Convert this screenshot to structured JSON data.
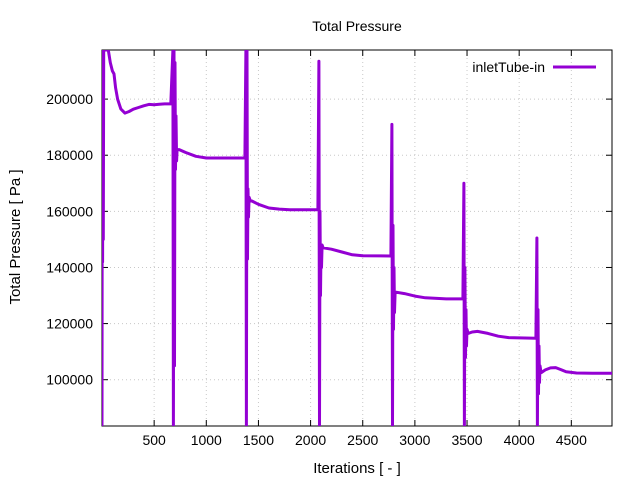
{
  "chart_data": {
    "type": "line",
    "title": "Total Pressure",
    "xlabel": "Iterations [ - ]",
    "ylabel": "Total Pressure [ Pa ]",
    "xlim": [
      0,
      4890
    ],
    "ylim": [
      83500,
      217500
    ],
    "xticks": [
      500,
      1000,
      1500,
      2000,
      2500,
      3000,
      3500,
      4000,
      4500
    ],
    "yticks": [
      100000,
      120000,
      140000,
      160000,
      180000,
      200000
    ],
    "xtick_labels": [
      "500",
      "1000",
      "1500",
      "2000",
      "2500",
      "3000",
      "3500",
      "4000",
      "4500"
    ],
    "ytick_labels": [
      "100000",
      "120000",
      "140000",
      "160000",
      "180000",
      "200000"
    ],
    "grid": true,
    "legend_position": "top-right",
    "series_color": "#9400d3",
    "series": [
      {
        "name": "inletTube-in",
        "points": [
          [
            0,
            83500
          ],
          [
            3,
            217500
          ],
          [
            6,
            142000
          ],
          [
            9,
            217500
          ],
          [
            12,
            150000
          ],
          [
            16,
            217500
          ],
          [
            60,
            217500
          ],
          [
            80,
            213000
          ],
          [
            100,
            210000
          ],
          [
            115,
            209000
          ],
          [
            130,
            204000
          ],
          [
            150,
            200000
          ],
          [
            180,
            196500
          ],
          [
            220,
            195000
          ],
          [
            260,
            195600
          ],
          [
            300,
            196400
          ],
          [
            350,
            197000
          ],
          [
            400,
            197600
          ],
          [
            450,
            198100
          ],
          [
            500,
            198000
          ],
          [
            550,
            198200
          ],
          [
            600,
            198300
          ],
          [
            660,
            198300
          ],
          [
            680,
            217500
          ],
          [
            685,
            83500
          ],
          [
            690,
            217500
          ],
          [
            695,
            105000
          ],
          [
            700,
            213000
          ],
          [
            705,
            175000
          ],
          [
            710,
            194000
          ],
          [
            715,
            178000
          ],
          [
            720,
            182000
          ],
          [
            740,
            182000
          ],
          [
            800,
            181000
          ],
          [
            900,
            179600
          ],
          [
            1000,
            179000
          ],
          [
            1200,
            179000
          ],
          [
            1370,
            179000
          ],
          [
            1380,
            217500
          ],
          [
            1385,
            83500
          ],
          [
            1390,
            217500
          ],
          [
            1395,
            143000
          ],
          [
            1400,
            168000
          ],
          [
            1405,
            158000
          ],
          [
            1410,
            165000
          ],
          [
            1420,
            164000
          ],
          [
            1500,
            162500
          ],
          [
            1600,
            161200
          ],
          [
            1700,
            160800
          ],
          [
            1800,
            160600
          ],
          [
            2070,
            160600
          ],
          [
            2080,
            213500
          ],
          [
            2085,
            83500
          ],
          [
            2090,
            160000
          ],
          [
            2095,
            130000
          ],
          [
            2100,
            146000
          ],
          [
            2105,
            140000
          ],
          [
            2110,
            148000
          ],
          [
            2120,
            147000
          ],
          [
            2200,
            146500
          ],
          [
            2300,
            145500
          ],
          [
            2400,
            144500
          ],
          [
            2500,
            144200
          ],
          [
            2770,
            144100
          ],
          [
            2780,
            191000
          ],
          [
            2785,
            83500
          ],
          [
            2790,
            155000
          ],
          [
            2795,
            118000
          ],
          [
            2800,
            140000
          ],
          [
            2805,
            124000
          ],
          [
            2810,
            131000
          ],
          [
            2820,
            131200
          ],
          [
            2900,
            130700
          ],
          [
            3000,
            129800
          ],
          [
            3100,
            129200
          ],
          [
            3300,
            128800
          ],
          [
            3460,
            128800
          ],
          [
            3470,
            170000
          ],
          [
            3475,
            83500
          ],
          [
            3480,
            140000
          ],
          [
            3485,
            108000
          ],
          [
            3490,
            125000
          ],
          [
            3495,
            112000
          ],
          [
            3500,
            118000
          ],
          [
            3510,
            116500
          ],
          [
            3550,
            117000
          ],
          [
            3600,
            117200
          ],
          [
            3700,
            116500
          ],
          [
            3800,
            115500
          ],
          [
            3900,
            115000
          ],
          [
            4160,
            114800
          ],
          [
            4170,
            150500
          ],
          [
            4175,
            83500
          ],
          [
            4180,
            125000
          ],
          [
            4185,
            95000
          ],
          [
            4190,
            112000
          ],
          [
            4195,
            99000
          ],
          [
            4200,
            105000
          ],
          [
            4210,
            102500
          ],
          [
            4250,
            103500
          ],
          [
            4300,
            104200
          ],
          [
            4350,
            104300
          ],
          [
            4400,
            103600
          ],
          [
            4450,
            102800
          ],
          [
            4550,
            102400
          ],
          [
            4700,
            102300
          ],
          [
            4890,
            102300
          ]
        ]
      }
    ]
  }
}
